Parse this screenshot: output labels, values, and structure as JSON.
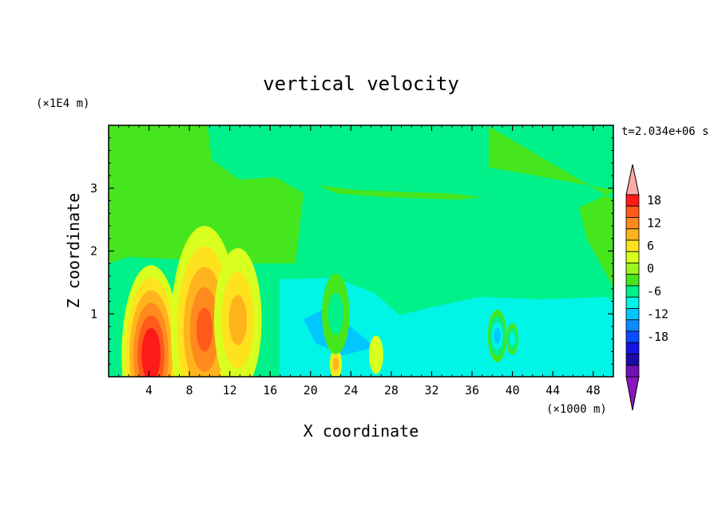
{
  "chart_data": {
    "type": "heatmap",
    "title": "vertical velocity",
    "xlabel": "X coordinate",
    "ylabel": "Z coordinate",
    "x_unit": "(×1000 m)",
    "y_unit": "(×1E4 m)",
    "time_label": "t=2.034e+06 s",
    "xlim": [
      0,
      50
    ],
    "ylim": [
      0,
      4
    ],
    "x_ticks": [
      4,
      8,
      12,
      16,
      20,
      24,
      28,
      32,
      36,
      40,
      44,
      48
    ],
    "y_ticks": [
      1,
      2,
      3
    ],
    "colorbar": {
      "levels": [
        -21,
        -18,
        -15,
        -12,
        -9,
        -6,
        -3,
        0,
        3,
        6,
        9,
        12,
        15,
        18,
        21
      ],
      "labels": [
        18,
        12,
        6,
        0,
        -6,
        -12,
        -18
      ],
      "colors": [
        "#ffa8a8",
        "#ff1a1a",
        "#ff5a1a",
        "#ff8a1e",
        "#ffb41e",
        "#ffe21e",
        "#d8ff1e",
        "#9cf51e",
        "#46e61e",
        "#00f08a",
        "#00f5e6",
        "#00c8ff",
        "#0a8cff",
        "#0a4cff",
        "#1414e6",
        "#1c0aa8",
        "#6e12b4",
        "#8a14c0"
      ],
      "extend": "both"
    },
    "features": [
      {
        "x": 4.2,
        "z": 0.35,
        "w": 5.0,
        "value": 20
      },
      {
        "x": 9.5,
        "z": 0.75,
        "w": 5.8,
        "value": 15
      },
      {
        "x": 12.8,
        "z": 0.9,
        "w": 4.0,
        "value": 9
      },
      {
        "x": 22.5,
        "z": 0.2,
        "w": 0.8,
        "value": 8
      },
      {
        "x": 26.5,
        "z": 0.35,
        "w": 1.0,
        "value": 4
      },
      {
        "x": 38.5,
        "z": 0.65,
        "w": 1.4,
        "value": -12
      },
      {
        "x": 40.0,
        "z": 0.6,
        "w": 0.8,
        "value": -10
      },
      {
        "x": 22.5,
        "z": 1.0,
        "w": 2.2,
        "value": -5
      }
    ]
  }
}
